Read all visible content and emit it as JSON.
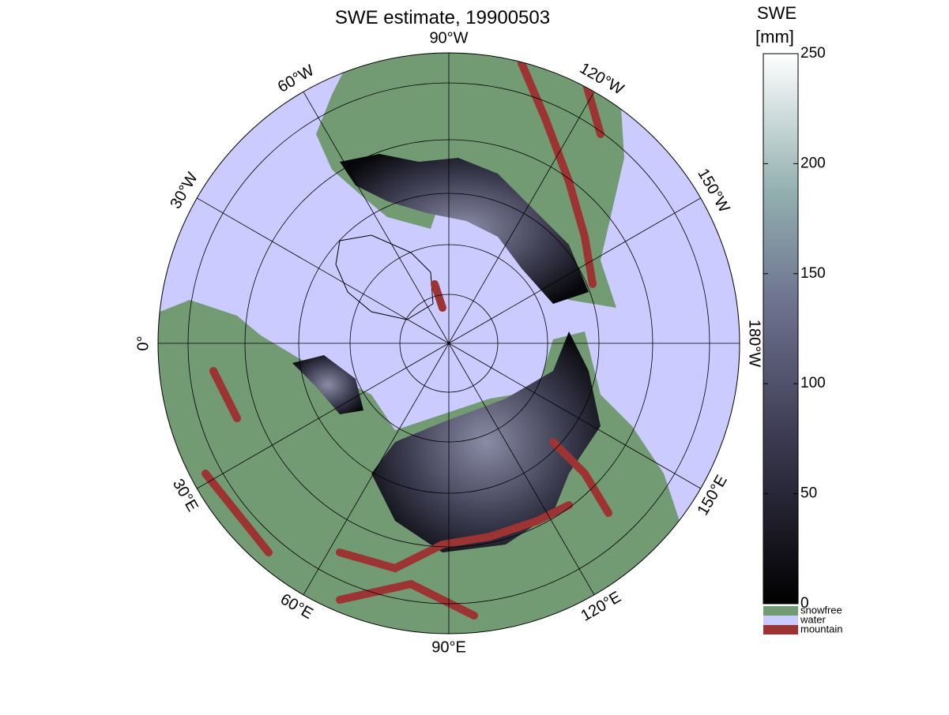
{
  "title": "SWE estimate, 19900503",
  "longitude_labels": [
    "90°W",
    "120°W",
    "150°W",
    "180°W",
    "150°E",
    "120°E",
    "90°E",
    "60°E",
    "30°E",
    "0°",
    "30°W",
    "60°W"
  ],
  "colorbar": {
    "label": [
      "SWE",
      "[mm]"
    ],
    "clim": [
      0,
      250
    ],
    "ticks": [
      0,
      50,
      100,
      150,
      200,
      250
    ]
  },
  "legend": [
    {
      "name": "snowfree",
      "color": "#739b73"
    },
    {
      "name": "water",
      "color": "#cbcbff"
    },
    {
      "name": "mountain",
      "color": "#9c3434"
    }
  ]
}
